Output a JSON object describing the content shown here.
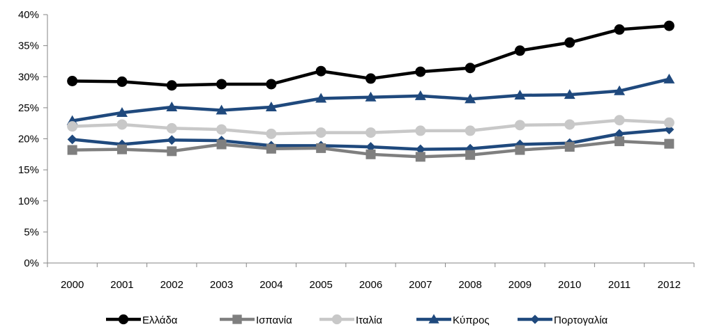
{
  "chart_data": {
    "type": "line",
    "title": "",
    "xlabel": "",
    "ylabel": "",
    "categories": [
      "2000",
      "2001",
      "2002",
      "2003",
      "2004",
      "2005",
      "2006",
      "2007",
      "2008",
      "2009",
      "2010",
      "2011",
      "2012"
    ],
    "ylim": [
      0,
      40
    ],
    "yticks": [
      0,
      5,
      10,
      15,
      20,
      25,
      30,
      35,
      40
    ],
    "ytick_labels": [
      "0%",
      "5%",
      "10%",
      "15%",
      "20%",
      "25%",
      "30%",
      "35%",
      "40%"
    ],
    "grid": false,
    "legend_position": "bottom",
    "series": [
      {
        "name": "Ελλάδα",
        "color": "#000000",
        "marker": "circle",
        "values": [
          29.3,
          29.2,
          28.6,
          28.8,
          28.8,
          30.9,
          29.7,
          30.8,
          31.4,
          34.2,
          35.5,
          37.6,
          38.2
        ]
      },
      {
        "name": "Ισπανία",
        "color": "#7f7f7f",
        "marker": "square",
        "values": [
          18.2,
          18.3,
          18.0,
          19.1,
          18.4,
          18.5,
          17.5,
          17.1,
          17.4,
          18.2,
          18.7,
          19.6,
          19.2
        ]
      },
      {
        "name": "Ιταλία",
        "color": "#c8c8c8",
        "marker": "circle",
        "values": [
          22.0,
          22.3,
          21.7,
          21.5,
          20.8,
          21.0,
          21.0,
          21.3,
          21.3,
          22.2,
          22.3,
          23.0,
          22.6
        ]
      },
      {
        "name": "Κύπρος",
        "color": "#1f497d",
        "marker": "triangle",
        "values": [
          22.9,
          24.2,
          25.1,
          24.6,
          25.1,
          26.5,
          26.7,
          26.9,
          26.4,
          27.0,
          27.1,
          27.7,
          29.6
        ]
      },
      {
        "name": "Πορτογαλία",
        "color": "#1f497d",
        "marker": "diamond",
        "values": [
          19.9,
          19.1,
          19.8,
          19.7,
          18.9,
          18.9,
          18.7,
          18.3,
          18.4,
          19.1,
          19.3,
          20.8,
          21.5
        ]
      }
    ]
  }
}
